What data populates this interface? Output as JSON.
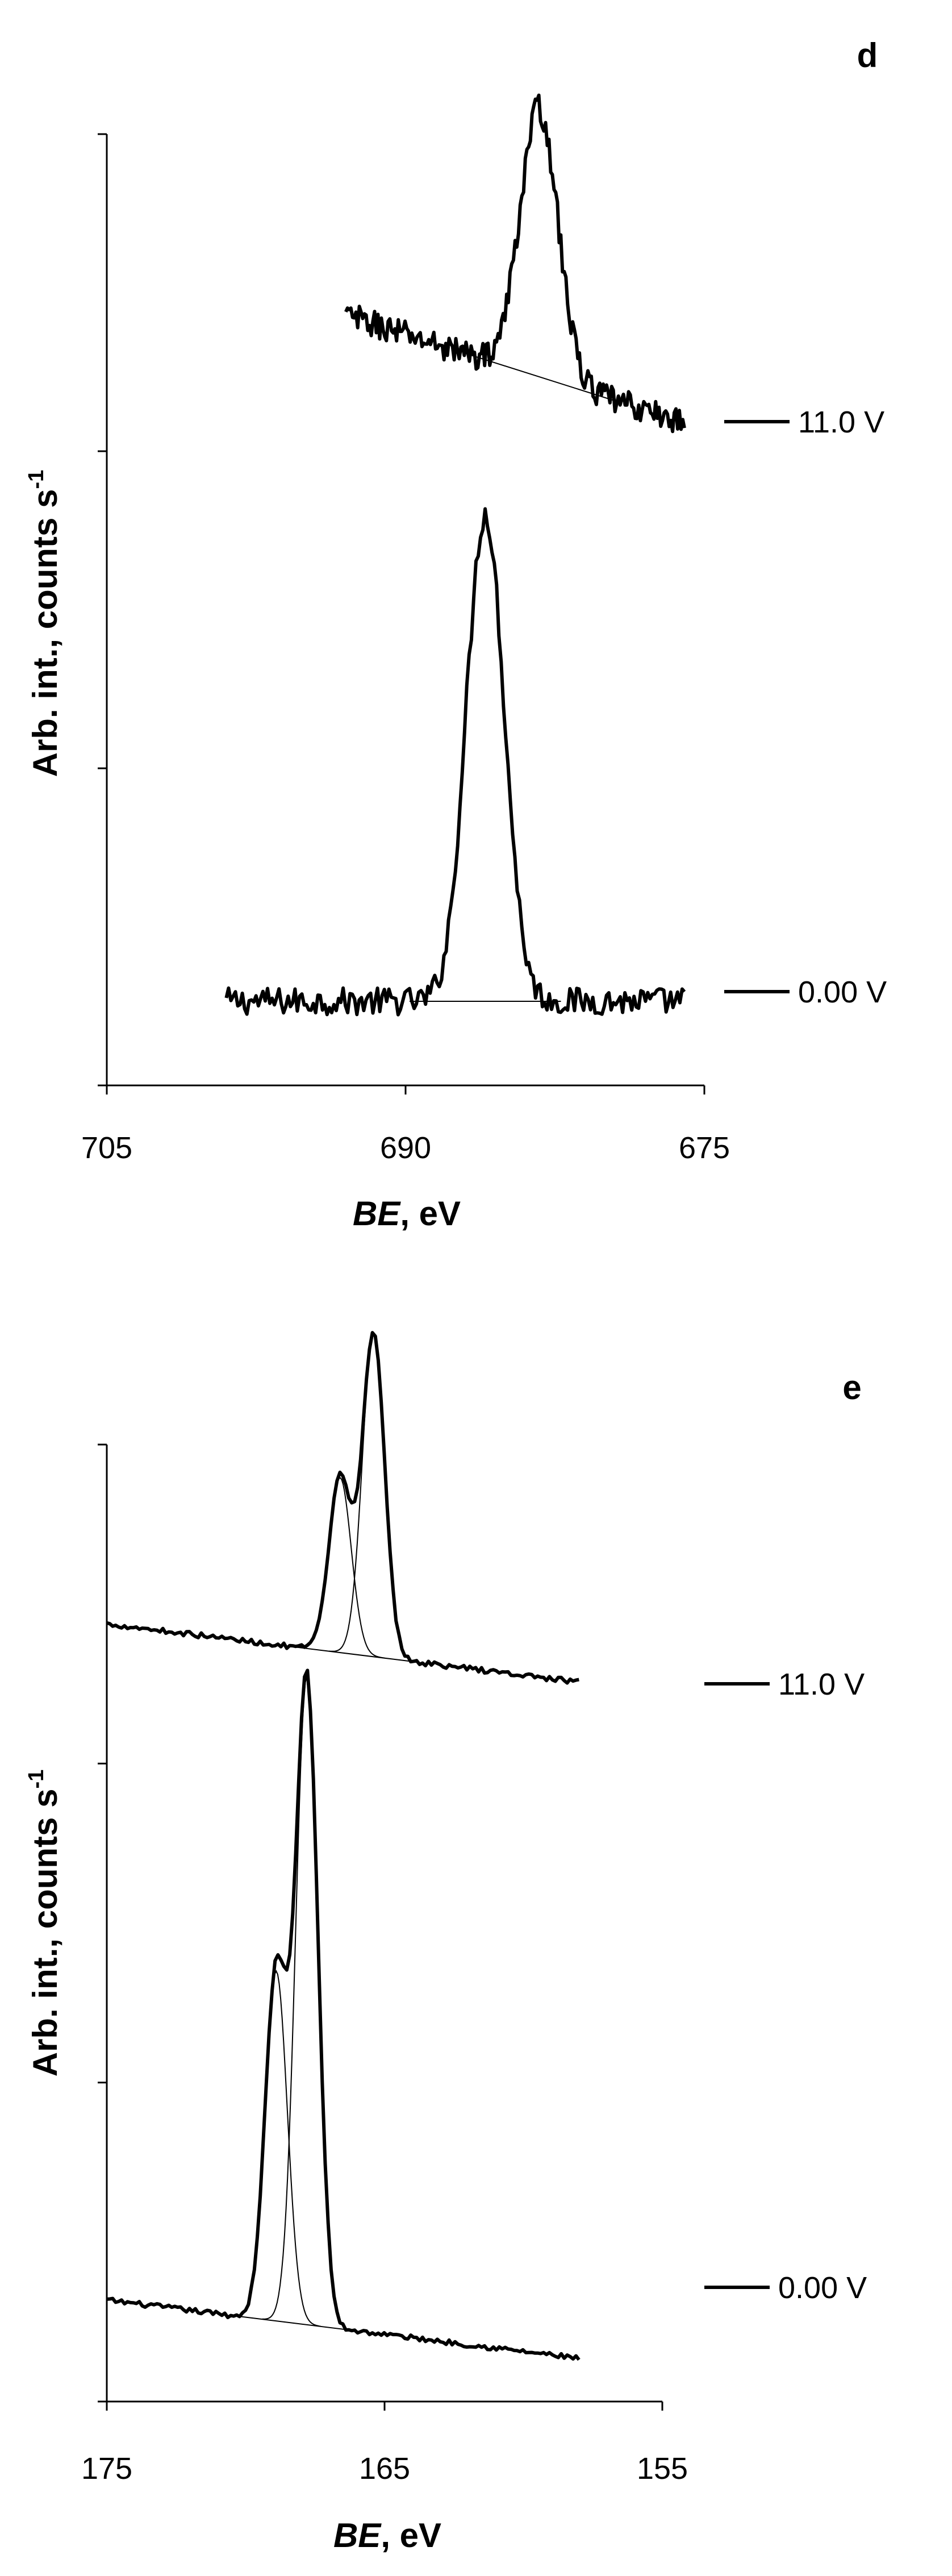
{
  "chart_data": [
    {
      "type": "line",
      "panel_label": "d",
      "xlabel_italic": "BE",
      "xlabel_rest": ", eV",
      "ylabel": "Arb. int., counts s",
      "ylabel_superscript": "-1",
      "xlim": [
        705,
        675
      ],
      "x_reversed": true,
      "x_ticks": [
        705,
        690,
        675
      ],
      "y_tick_count": 4,
      "y_tick_labels_shown": false,
      "grid": false,
      "legend_placement": "right",
      "series": [
        {
          "name": "0.00 V",
          "color": "#000000",
          "peaks": [
            {
              "center": 686.0,
              "height": 1.0,
              "width": 0.95
            }
          ],
          "x_start": 699.0,
          "x_end": 676.0,
          "baseline": [
            0.0,
            0.0
          ],
          "noise": 0.028
        },
        {
          "name": "11.0 V",
          "color": "#000000",
          "peaks": [
            {
              "center": 683.3,
              "height": 0.55,
              "width": 0.95
            }
          ],
          "x_start": 693.0,
          "x_end": 676.0,
          "baseline": [
            0.22,
            0.0
          ],
          "noise": 0.028
        }
      ]
    },
    {
      "type": "line",
      "panel_label": "e",
      "xlabel_italic": "BE",
      "xlabel_rest": ", eV",
      "ylabel": "Arb. int., counts s",
      "ylabel_superscript": "-1",
      "xlim": [
        175,
        155
      ],
      "x_reversed": true,
      "x_ticks": [
        175,
        165,
        155
      ],
      "y_tick_count": 4,
      "y_tick_labels_shown": false,
      "grid": false,
      "legend_placement": "right",
      "series": [
        {
          "name": "0.00 V",
          "color": "#000000",
          "peaks": [
            {
              "center": 167.8,
              "height": 1.0,
              "width": 0.4
            },
            {
              "center": 168.9,
              "height": 0.54,
              "width": 0.4
            }
          ],
          "x_start": 175.0,
          "x_end": 158.0,
          "baseline": [
            0.09,
            0.0
          ],
          "noise": 0.004
        },
        {
          "name": "11.0 V",
          "color": "#000000",
          "peaks": [
            {
              "center": 165.4,
              "height": 0.5,
              "width": 0.4
            },
            {
              "center": 166.6,
              "height": 0.27,
              "width": 0.4
            }
          ],
          "x_start": 175.0,
          "x_end": 158.0,
          "baseline": [
            0.09,
            0.0
          ],
          "noise": 0.004
        }
      ]
    }
  ]
}
